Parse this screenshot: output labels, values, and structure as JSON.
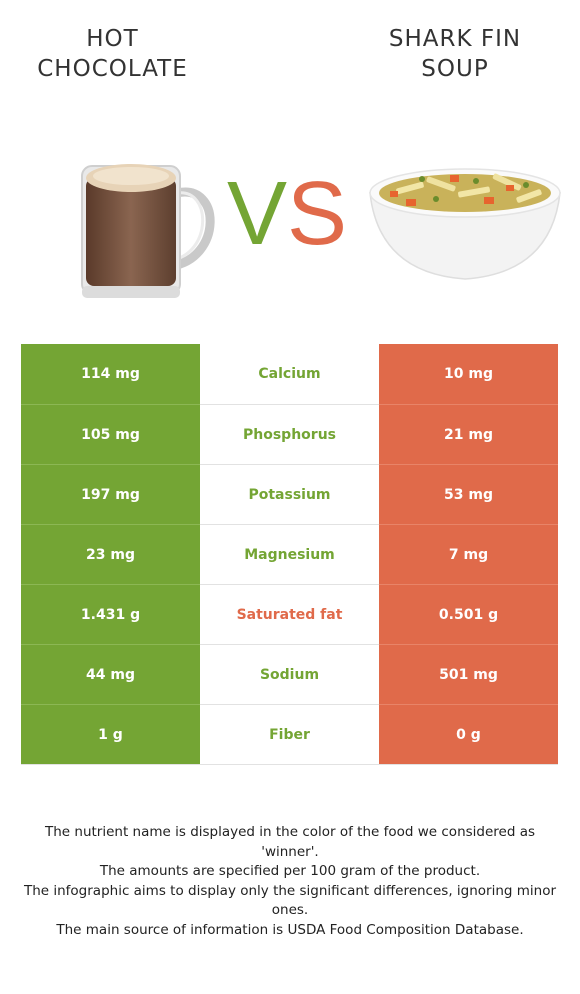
{
  "header": {
    "left_title": "HOT CHOCOLATE",
    "right_title": "SHARK FIN SOUP",
    "vs_v": "V",
    "vs_s": "S"
  },
  "colors": {
    "winner_left": "#74a534",
    "winner_right": "#e06a4a"
  },
  "rows": [
    {
      "left": "114 mg",
      "nutrient": "Calcium",
      "right": "10 mg",
      "winner": "left"
    },
    {
      "left": "105 mg",
      "nutrient": "Phosphorus",
      "right": "21 mg",
      "winner": "left"
    },
    {
      "left": "197 mg",
      "nutrient": "Potassium",
      "right": "53 mg",
      "winner": "left"
    },
    {
      "left": "23 mg",
      "nutrient": "Magnesium",
      "right": "7 mg",
      "winner": "left"
    },
    {
      "left": "1.431 g",
      "nutrient": "Saturated fat",
      "right": "0.501 g",
      "winner": "right"
    },
    {
      "left": "44 mg",
      "nutrient": "Sodium",
      "right": "501 mg",
      "winner": "left"
    },
    {
      "left": "1 g",
      "nutrient": "Fiber",
      "right": "0 g",
      "winner": "left"
    }
  ],
  "footnote": {
    "line1": "The nutrient name is displayed in the color of the food we considered as 'winner'.",
    "line2": "The amounts are specified per 100 gram of the product.",
    "line3": "The infographic aims to display only the significant differences, ignoring minor ones.",
    "line4": "The main source of information is USDA Food Composition Database."
  }
}
